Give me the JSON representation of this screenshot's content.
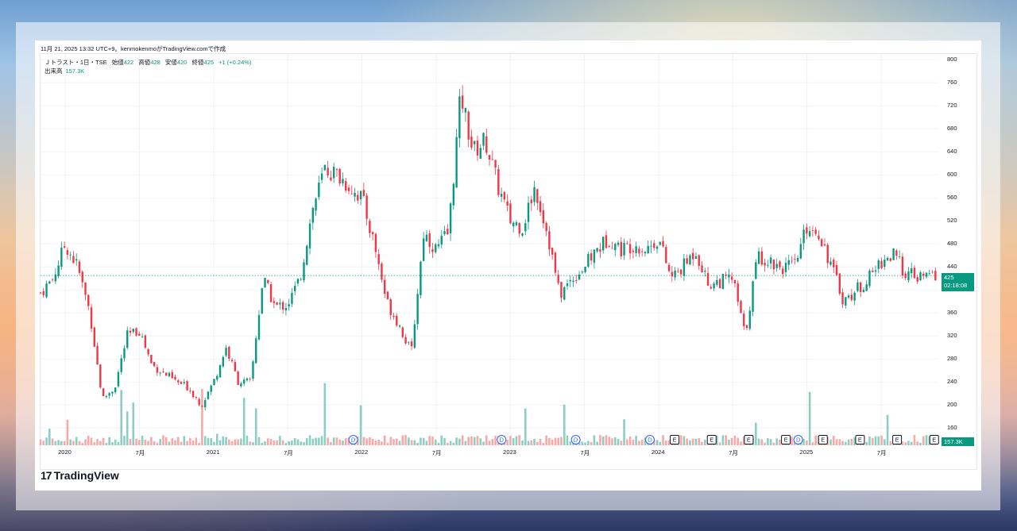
{
  "header": {
    "timestamp": "11月 21, 2025 13:32 UTC+9。kenmokenmoがTradingView.comで作成"
  },
  "legend": {
    "title": "Ｊトラスト・1日・TSE",
    "open_label": "始値",
    "open": "422",
    "high_label": "高値",
    "high": "428",
    "low_label": "安値",
    "low": "420",
    "close_label": "終値",
    "close": "425",
    "change": "+1 (+0.24%)",
    "volume_label": "出来高",
    "volume": "157.3K"
  },
  "price_badge": {
    "price": "425",
    "countdown": "02:18:08"
  },
  "volume_badge": "157.3K",
  "logo": {
    "mark": "17",
    "text": "TradingView"
  },
  "colors": {
    "up": "#089981",
    "down": "#f23645",
    "up_volume": "#8ccfc2",
    "down_volume": "#f7a9a7"
  },
  "chart_data": {
    "type": "candlestick",
    "symbol": "Ｊトラスト",
    "interval": "1日",
    "exchange": "TSE",
    "ylim": [
      130,
      810
    ],
    "yticks": [
      160,
      200,
      240,
      280,
      320,
      360,
      400,
      440,
      480,
      520,
      560,
      600,
      640,
      680,
      720,
      760,
      800
    ],
    "xticks": [
      "2020",
      "7月",
      "2021",
      "7月",
      "2022",
      "7月",
      "2023",
      "7月",
      "2024",
      "7月",
      "2025",
      "7月"
    ],
    "last_price_line": 425,
    "close_series_approx": [
      {
        "x": "2019-11",
        "close": 395
      },
      {
        "x": "2019-12",
        "close": 420
      },
      {
        "x": "2020-01",
        "close": 480
      },
      {
        "x": "2020-02",
        "close": 440
      },
      {
        "x": "2020-03",
        "close": 360
      },
      {
        "x": "2020-04",
        "close": 210
      },
      {
        "x": "2020-05",
        "close": 230
      },
      {
        "x": "2020-06",
        "close": 320
      },
      {
        "x": "2020-07",
        "close": 330
      },
      {
        "x": "2020-08",
        "close": 270
      },
      {
        "x": "2020-09",
        "close": 255
      },
      {
        "x": "2020-10",
        "close": 240
      },
      {
        "x": "2020-11",
        "close": 230
      },
      {
        "x": "2020-12",
        "close": 200
      },
      {
        "x": "2021-01",
        "close": 240
      },
      {
        "x": "2021-02",
        "close": 300
      },
      {
        "x": "2021-03",
        "close": 240
      },
      {
        "x": "2021-04",
        "close": 240
      },
      {
        "x": "2021-05",
        "close": 420
      },
      {
        "x": "2021-06",
        "close": 370
      },
      {
        "x": "2021-07",
        "close": 375
      },
      {
        "x": "2021-08",
        "close": 420
      },
      {
        "x": "2021-09",
        "close": 540
      },
      {
        "x": "2021-10",
        "close": 610
      },
      {
        "x": "2021-11",
        "close": 600
      },
      {
        "x": "2021-12",
        "close": 580
      },
      {
        "x": "2022-01",
        "close": 560
      },
      {
        "x": "2022-02",
        "close": 480
      },
      {
        "x": "2022-03",
        "close": 380
      },
      {
        "x": "2022-04",
        "close": 340
      },
      {
        "x": "2022-05",
        "close": 290
      },
      {
        "x": "2022-06",
        "close": 500
      },
      {
        "x": "2022-07",
        "close": 470
      },
      {
        "x": "2022-08",
        "close": 500
      },
      {
        "x": "2022-09",
        "close": 740
      },
      {
        "x": "2022-10",
        "close": 640
      },
      {
        "x": "2022-11",
        "close": 660
      },
      {
        "x": "2022-12",
        "close": 580
      },
      {
        "x": "2023-01",
        "close": 520
      },
      {
        "x": "2023-02",
        "close": 510
      },
      {
        "x": "2023-03",
        "close": 580
      },
      {
        "x": "2023-04",
        "close": 500
      },
      {
        "x": "2023-05",
        "close": 390
      },
      {
        "x": "2023-06",
        "close": 420
      },
      {
        "x": "2023-07",
        "close": 440
      },
      {
        "x": "2023-08",
        "close": 470
      },
      {
        "x": "2023-09",
        "close": 490
      },
      {
        "x": "2023-10",
        "close": 470
      },
      {
        "x": "2023-11",
        "close": 480
      },
      {
        "x": "2023-12",
        "close": 470
      },
      {
        "x": "2024-01",
        "close": 490
      },
      {
        "x": "2024-02",
        "close": 420
      },
      {
        "x": "2024-03",
        "close": 440
      },
      {
        "x": "2024-04",
        "close": 470
      },
      {
        "x": "2024-05",
        "close": 410
      },
      {
        "x": "2024-06",
        "close": 415
      },
      {
        "x": "2024-07",
        "close": 420
      },
      {
        "x": "2024-08",
        "close": 320
      },
      {
        "x": "2024-09",
        "close": 460
      },
      {
        "x": "2024-10",
        "close": 450
      },
      {
        "x": "2024-11",
        "close": 440
      },
      {
        "x": "2024-12",
        "close": 440
      },
      {
        "x": "2025-01",
        "close": 510
      },
      {
        "x": "2025-02",
        "close": 500
      },
      {
        "x": "2025-03",
        "close": 440
      },
      {
        "x": "2025-04",
        "close": 380
      },
      {
        "x": "2025-05",
        "close": 400
      },
      {
        "x": "2025-06",
        "close": 420
      },
      {
        "x": "2025-07",
        "close": 450
      },
      {
        "x": "2025-08",
        "close": 460
      },
      {
        "x": "2025-09",
        "close": 430
      },
      {
        "x": "2025-10",
        "close": 420
      },
      {
        "x": "2025-11",
        "close": 425
      }
    ],
    "event_markers": [
      {
        "type": "D",
        "x": "2021-12"
      },
      {
        "type": "D",
        "x": "2022-12"
      },
      {
        "type": "D",
        "x": "2023-06"
      },
      {
        "type": "D",
        "x": "2023-12"
      },
      {
        "type": "E",
        "x": "2024-02"
      },
      {
        "type": "E",
        "x": "2024-05"
      },
      {
        "type": "E",
        "x": "2024-08"
      },
      {
        "type": "E",
        "x": "2024-11"
      },
      {
        "type": "D",
        "x": "2024-12"
      },
      {
        "type": "E",
        "x": "2025-02"
      },
      {
        "type": "E",
        "x": "2025-05"
      },
      {
        "type": "E",
        "x": "2025-08"
      },
      {
        "type": "E",
        "x": "2025-11"
      }
    ]
  }
}
